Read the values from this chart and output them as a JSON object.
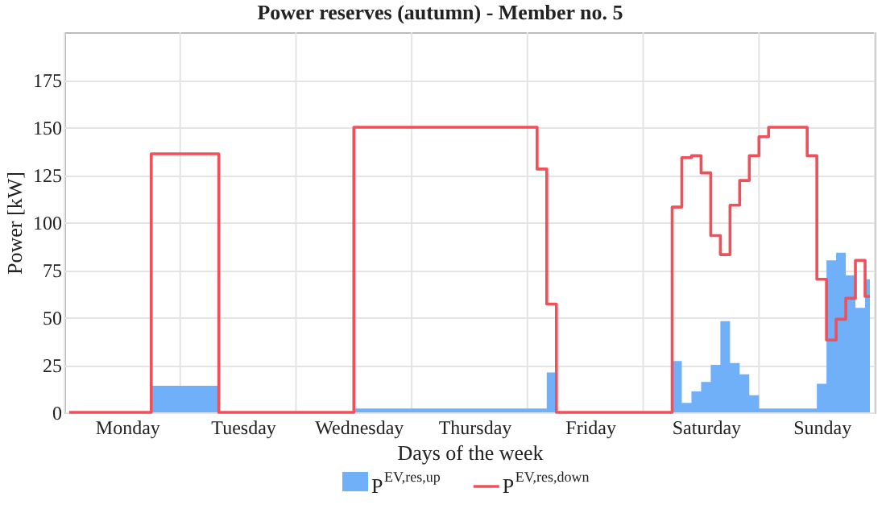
{
  "chart_data": {
    "type": "area",
    "title": "Power reserves (autumn) - Member no. 5",
    "xlabel": "Days of the week",
    "ylabel": "Power [kW]",
    "categories": [
      null,
      null,
      null,
      null,
      null,
      null,
      "Monday",
      null,
      null,
      null,
      null,
      null,
      null,
      null,
      null,
      null,
      null,
      null,
      "Tuesday",
      null,
      null,
      null,
      null,
      null,
      null,
      null,
      null,
      null,
      null,
      null,
      "Wednesday",
      null,
      null,
      null,
      null,
      null,
      null,
      null,
      null,
      null,
      null,
      null,
      "Thursday",
      null,
      null,
      null,
      null,
      null,
      null,
      null,
      null,
      null,
      null,
      null,
      "Friday",
      null,
      null,
      null,
      null,
      null,
      null,
      null,
      null,
      null,
      null,
      null,
      "Saturday",
      null,
      null,
      null,
      null,
      null,
      null,
      null,
      null,
      null,
      null,
      null,
      "Sunday",
      null,
      null,
      null,
      null,
      null
    ],
    "ylim": [
      0,
      200
    ],
    "yticks": [
      0,
      25,
      50,
      75,
      100,
      125,
      150,
      175
    ],
    "grid": true,
    "legend": "bottom",
    "series": [
      {
        "name": "P$^{EV,res,up}$",
        "color": "#70b0f8",
        "values": [
          0,
          0,
          0,
          0,
          0,
          0,
          0,
          0,
          0,
          14,
          14,
          14,
          14,
          14,
          14,
          14,
          0,
          0,
          0,
          0,
          0,
          0,
          0,
          0,
          0,
          0,
          0,
          0,
          0,
          0,
          2,
          2,
          2,
          2,
          2,
          2,
          2,
          2,
          2,
          2,
          2,
          2,
          2,
          2,
          2,
          2,
          2,
          2,
          2,
          2,
          21,
          0,
          0,
          0,
          0,
          0,
          0,
          0,
          0,
          0,
          0,
          0,
          0,
          27,
          5,
          11,
          16,
          25,
          48,
          26,
          20,
          9,
          2,
          2,
          2,
          2,
          2,
          2,
          15,
          80,
          84,
          72,
          55,
          70
        ]
      },
      {
        "name": "P$^{EV,res,down}$",
        "type": "step",
        "color": "#f0505a",
        "values": [
          0,
          0,
          0,
          0,
          0,
          0,
          0,
          0,
          0,
          136,
          136,
          136,
          136,
          136,
          136,
          136,
          0,
          0,
          0,
          0,
          0,
          0,
          0,
          0,
          0,
          0,
          0,
          0,
          0,
          0,
          150,
          150,
          150,
          150,
          150,
          150,
          150,
          150,
          150,
          150,
          150,
          150,
          150,
          150,
          150,
          150,
          150,
          150,
          150,
          128,
          57,
          0,
          0,
          0,
          0,
          0,
          0,
          0,
          0,
          0,
          0,
          0,
          0,
          108,
          134,
          135,
          126,
          93,
          83,
          109,
          122,
          135,
          145,
          150,
          150,
          150,
          150,
          135,
          70,
          38,
          49,
          60,
          80,
          61
        ]
      }
    ]
  }
}
